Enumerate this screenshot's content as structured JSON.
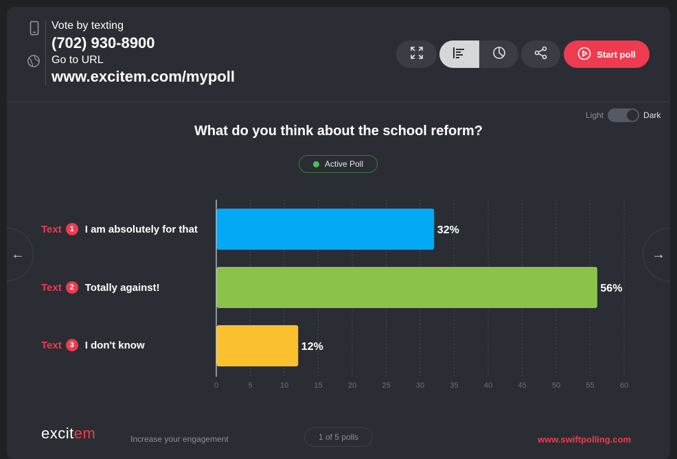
{
  "header": {
    "vote_label": "Vote by texting",
    "phone": "(702) 930-8900",
    "url_label": "Go to URL",
    "url": "www.excitem.com/mypoll",
    "phone_icon": "phone-icon",
    "globe_icon": "globe-icon"
  },
  "toolbar": {
    "expand_icon": "expand-icon",
    "bar_view_icon": "bar-chart-icon",
    "pie_view_icon": "pie-chart-icon",
    "share_icon": "share-icon",
    "start_label": "Start poll",
    "start_icon": "play-icon",
    "active_view": "bar"
  },
  "theme": {
    "light_label": "Light",
    "dark_label": "Dark",
    "selected": "Dark"
  },
  "poll": {
    "question": "What do you think about the school reform?",
    "status": "Active Poll",
    "options": [
      {
        "prefix": "Text",
        "number": "1",
        "label": "I am absolutely for that"
      },
      {
        "prefix": "Text",
        "number": "2",
        "label": "Totally against!"
      },
      {
        "prefix": "Text",
        "number": "3",
        "label": "I don't know"
      }
    ]
  },
  "chart_data": {
    "type": "bar",
    "orientation": "horizontal",
    "categories": [
      "I am absolutely for that",
      "Totally against!",
      "I don't know"
    ],
    "values": [
      32,
      56,
      12
    ],
    "value_labels": [
      "32%",
      "56%",
      "12%"
    ],
    "colors": [
      "#03a9f4",
      "#8bc34a",
      "#fbc02d"
    ],
    "xlim": [
      0,
      60
    ],
    "xticks": [
      0,
      5,
      10,
      15,
      20,
      25,
      30,
      35,
      40,
      45,
      50,
      55,
      60
    ],
    "grid": true
  },
  "footer": {
    "logo_text": "excitem",
    "tagline": "Increase your engagement",
    "pager": "1 of 5 polls",
    "site": "www.swiftpolling.com"
  },
  "colors": {
    "accent": "#ef3b4f",
    "background": "#2a2d33",
    "active_status": "#4cc05a"
  }
}
